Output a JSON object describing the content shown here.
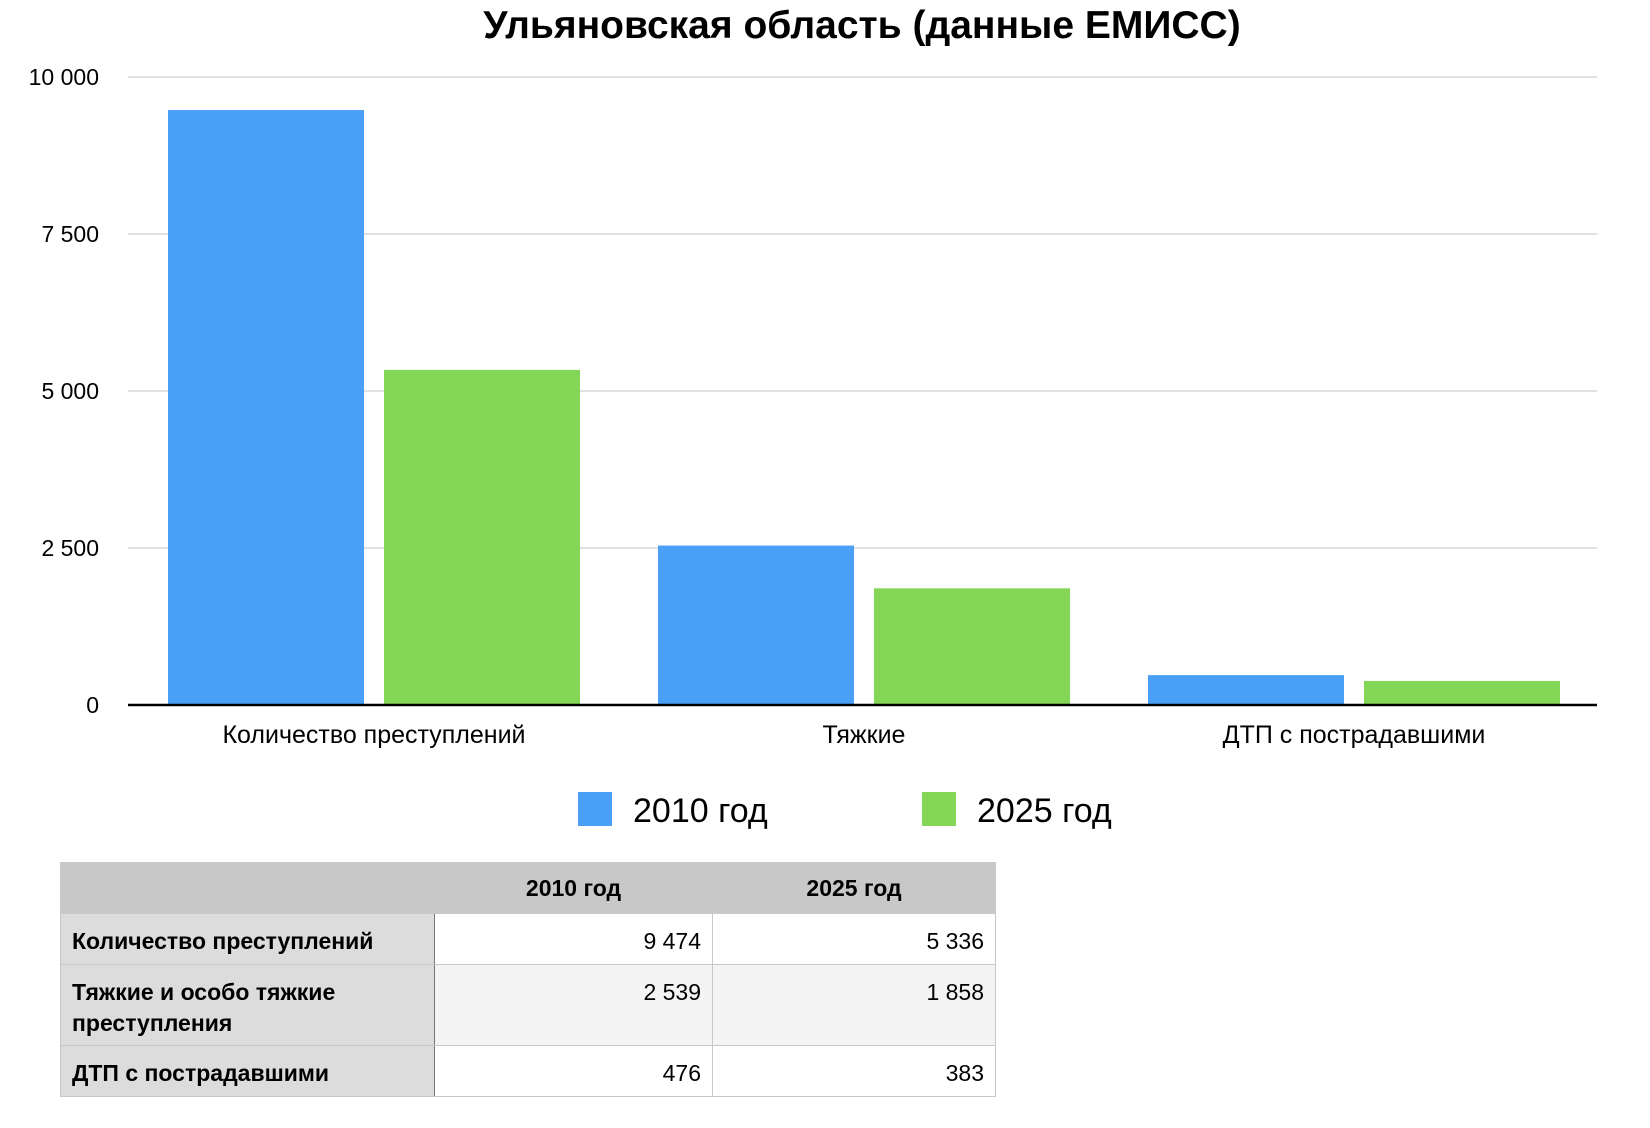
{
  "chart_data": {
    "type": "bar",
    "title": "Ульяновская область (данные ЕМИСС)",
    "categories": [
      "Количество преступлений",
      "Тяжкие",
      "ДТП с пострадавшими"
    ],
    "series": [
      {
        "name": "2010 год",
        "color": "#4aa0f6",
        "values": [
          9474,
          2539,
          476
        ]
      },
      {
        "name": "2025 год",
        "color": "#84d657",
        "values": [
          5336,
          1858,
          383
        ]
      }
    ],
    "ylim": [
      0,
      10000
    ],
    "y_ticks": [
      {
        "value": 0,
        "label": "0"
      },
      {
        "value": 2500,
        "label": "2 500"
      },
      {
        "value": 5000,
        "label": "5 000"
      },
      {
        "value": 7500,
        "label": "7 500"
      },
      {
        "value": 10000,
        "label": "10 000"
      }
    ],
    "grid": true,
    "legend": "bottom-center"
  },
  "table": {
    "headers": [
      "",
      "2010 год",
      "2025 год"
    ],
    "rows": [
      {
        "label": "Количество преступлений",
        "v2010": "9 474",
        "v2025": "5 336"
      },
      {
        "label": "Тяжкие и особо тяжкие преступления",
        "v2010": "2 539",
        "v2025": "1 858"
      },
      {
        "label": "ДТП с пострадавшими",
        "v2010": "476",
        "v2025": "383"
      }
    ]
  }
}
